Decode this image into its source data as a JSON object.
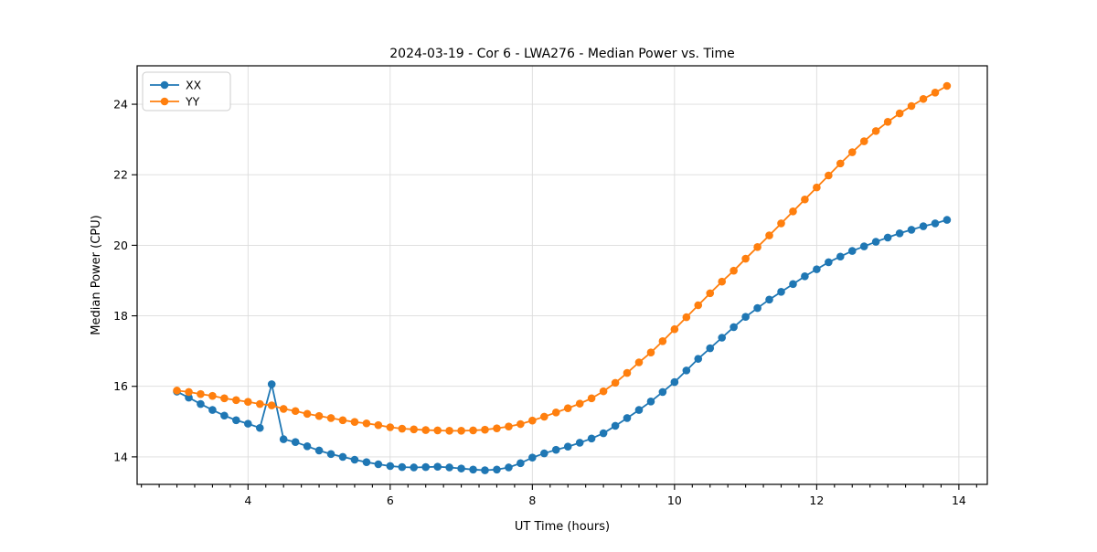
{
  "figure": {
    "background": "#ffffff"
  },
  "chart_data": {
    "type": "line",
    "title": "2024-03-19 - Cor 6 - LWA276 - Median Power vs. Time",
    "xlabel": "UT Time (hours)",
    "ylabel": "Median Power (CPU)",
    "xlim": [
      2.44,
      14.4
    ],
    "ylim": [
      13.22,
      25.09
    ],
    "x_ticks": [
      4,
      6,
      8,
      10,
      12,
      14
    ],
    "x_minor_tick_step": 0.25,
    "y_ticks": [
      14,
      16,
      18,
      20,
      22,
      24
    ],
    "grid": true,
    "legend_position": "upper-left",
    "x": [
      3.0,
      3.167,
      3.333,
      3.5,
      3.667,
      3.833,
      4.0,
      4.167,
      4.333,
      4.5,
      4.667,
      4.833,
      5.0,
      5.167,
      5.333,
      5.5,
      5.667,
      5.833,
      6.0,
      6.167,
      6.333,
      6.5,
      6.667,
      6.833,
      7.0,
      7.167,
      7.333,
      7.5,
      7.667,
      7.833,
      8.0,
      8.167,
      8.333,
      8.5,
      8.667,
      8.833,
      9.0,
      9.167,
      9.333,
      9.5,
      9.667,
      9.833,
      10.0,
      10.167,
      10.333,
      10.5,
      10.667,
      10.833,
      11.0,
      11.167,
      11.333,
      11.5,
      11.667,
      11.833,
      12.0,
      12.167,
      12.333,
      12.5,
      12.667,
      12.833,
      13.0,
      13.167,
      13.333,
      13.5,
      13.667,
      13.833
    ],
    "series": [
      {
        "name": "XX",
        "color": "#1f77b4",
        "values": [
          15.85,
          15.68,
          15.5,
          15.33,
          15.17,
          15.04,
          14.94,
          14.82,
          16.06,
          14.5,
          14.42,
          14.3,
          14.18,
          14.08,
          14.0,
          13.92,
          13.85,
          13.79,
          13.74,
          13.71,
          13.7,
          13.71,
          13.72,
          13.7,
          13.67,
          13.64,
          13.62,
          13.64,
          13.7,
          13.82,
          13.98,
          14.1,
          14.2,
          14.29,
          14.4,
          14.52,
          14.67,
          14.88,
          15.1,
          15.33,
          15.57,
          15.84,
          16.12,
          16.45,
          16.78,
          17.08,
          17.38,
          17.68,
          17.97,
          18.22,
          18.46,
          18.68,
          18.9,
          19.12,
          19.32,
          19.52,
          19.68,
          19.84,
          19.97,
          20.1,
          20.22,
          20.34,
          20.44,
          20.54,
          20.62,
          20.72
        ]
      },
      {
        "name": "YY",
        "color": "#ff7f0e",
        "values": [
          15.88,
          15.84,
          15.78,
          15.73,
          15.66,
          15.61,
          15.56,
          15.5,
          15.46,
          15.36,
          15.3,
          15.22,
          15.16,
          15.1,
          15.04,
          14.99,
          14.95,
          14.9,
          14.84,
          14.8,
          14.78,
          14.76,
          14.75,
          14.74,
          14.74,
          14.75,
          14.77,
          14.81,
          14.86,
          14.93,
          15.03,
          15.14,
          15.26,
          15.38,
          15.51,
          15.66,
          15.86,
          16.1,
          16.38,
          16.68,
          16.96,
          17.28,
          17.62,
          17.96,
          18.3,
          18.64,
          18.97,
          19.28,
          19.62,
          19.95,
          20.28,
          20.62,
          20.96,
          21.3,
          21.64,
          21.98,
          22.32,
          22.64,
          22.95,
          23.24,
          23.5,
          23.74,
          23.95,
          24.15,
          24.33,
          24.52
        ]
      }
    ]
  }
}
